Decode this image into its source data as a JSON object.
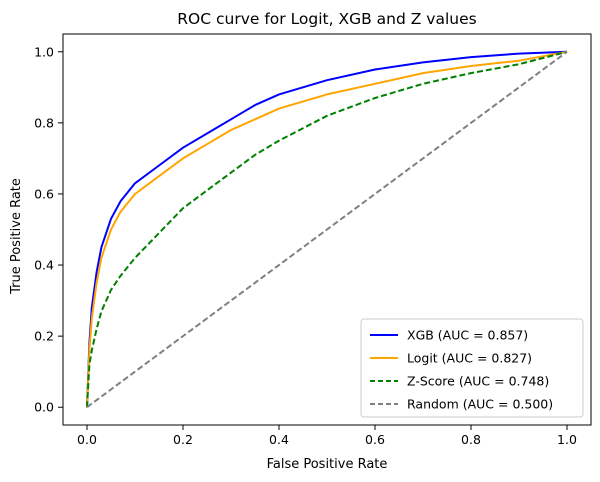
{
  "chart_data": {
    "type": "line",
    "title": "ROC curve for Logit, XGB and Z values",
    "xlabel": "False Positive Rate",
    "ylabel": "True Positive Rate",
    "xlim": [
      -0.05,
      1.05
    ],
    "ylim": [
      -0.05,
      1.05
    ],
    "xticks": [
      0.0,
      0.2,
      0.4,
      0.6,
      0.8,
      1.0
    ],
    "yticks": [
      0.0,
      0.2,
      0.4,
      0.6,
      0.8,
      1.0
    ],
    "xtick_labels": [
      "0.0",
      "0.2",
      "0.4",
      "0.6",
      "0.8",
      "1.0"
    ],
    "ytick_labels": [
      "0.0",
      "0.2",
      "0.4",
      "0.6",
      "0.8",
      "1.0"
    ],
    "grid": false,
    "legend_position": "lower-right",
    "series": [
      {
        "name": "XGB (AUC = 0.857)",
        "color": "#0000ff",
        "dash": "solid",
        "x": [
          0,
          0.005,
          0.01,
          0.02,
          0.03,
          0.05,
          0.07,
          0.1,
          0.15,
          0.2,
          0.25,
          0.3,
          0.35,
          0.4,
          0.5,
          0.6,
          0.7,
          0.8,
          0.9,
          1.0
        ],
        "y": [
          0,
          0.18,
          0.28,
          0.38,
          0.45,
          0.53,
          0.58,
          0.63,
          0.68,
          0.73,
          0.77,
          0.81,
          0.85,
          0.88,
          0.92,
          0.95,
          0.97,
          0.985,
          0.995,
          1.0
        ]
      },
      {
        "name": "Logit (AUC = 0.827)",
        "color": "#ffa500",
        "dash": "solid",
        "x": [
          0,
          0.005,
          0.01,
          0.02,
          0.03,
          0.05,
          0.07,
          0.1,
          0.15,
          0.2,
          0.25,
          0.3,
          0.35,
          0.4,
          0.5,
          0.6,
          0.7,
          0.8,
          0.9,
          1.0
        ],
        "y": [
          0,
          0.16,
          0.25,
          0.35,
          0.42,
          0.5,
          0.55,
          0.6,
          0.65,
          0.7,
          0.74,
          0.78,
          0.81,
          0.84,
          0.88,
          0.91,
          0.94,
          0.96,
          0.975,
          1.0
        ]
      },
      {
        "name": "Z-Score (AUC = 0.748)",
        "color": "#008000",
        "dash": "dashed",
        "x": [
          0,
          0.005,
          0.01,
          0.02,
          0.03,
          0.05,
          0.07,
          0.1,
          0.15,
          0.2,
          0.25,
          0.3,
          0.35,
          0.4,
          0.5,
          0.6,
          0.7,
          0.8,
          0.9,
          1.0
        ],
        "y": [
          0,
          0.12,
          0.16,
          0.22,
          0.27,
          0.33,
          0.37,
          0.42,
          0.49,
          0.56,
          0.61,
          0.66,
          0.71,
          0.75,
          0.82,
          0.87,
          0.91,
          0.94,
          0.965,
          1.0
        ]
      },
      {
        "name": "Random (AUC = 0.500)",
        "color": "#808080",
        "dash": "dashed",
        "x": [
          0,
          1
        ],
        "y": [
          0,
          1
        ]
      }
    ]
  }
}
